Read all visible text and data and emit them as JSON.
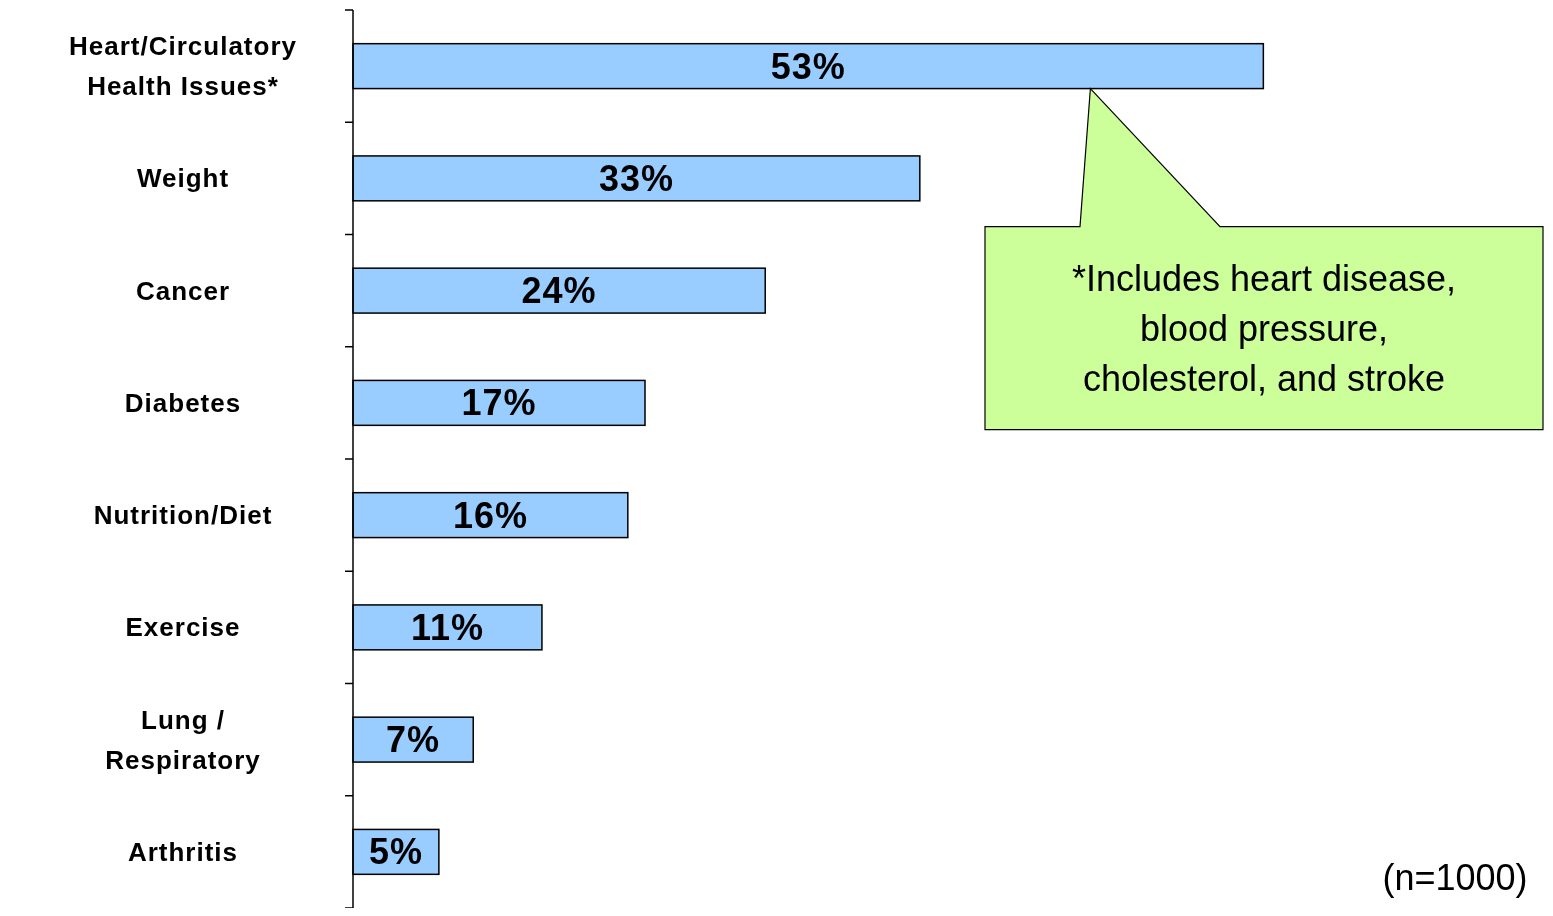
{
  "chart_data": {
    "type": "bar",
    "orientation": "horizontal",
    "categories": [
      "Heart/Circulatory Health Issues*",
      "Weight",
      "Cancer",
      "Diabetes",
      "Nutrition/Diet",
      "Exercise",
      "Lung / Respiratory",
      "Arthritis"
    ],
    "values": [
      53,
      33,
      24,
      17,
      16,
      11,
      7,
      5
    ],
    "value_labels": [
      "53%",
      "33%",
      "24%",
      "17%",
      "16%",
      "11%",
      "7%",
      "5%"
    ],
    "color": "#99ccff",
    "annotations": [
      "*Includes heart disease, blood pressure, cholesterol, and stroke",
      "(n=1000)"
    ]
  }
}
